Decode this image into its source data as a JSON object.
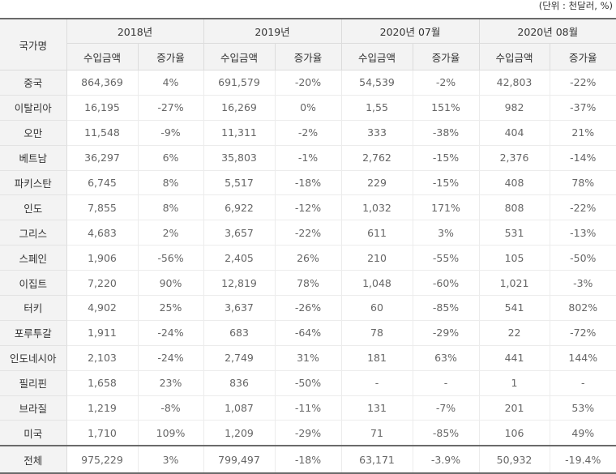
{
  "unit_note": "(단위 : 천달러, %)",
  "headers": {
    "country": "국가명",
    "periods": [
      "2018년",
      "2019년",
      "2020년 07월",
      "2020년 08월"
    ],
    "amount": "수입금액",
    "growth": "증가율"
  },
  "rows": [
    {
      "name": "중국",
      "cells": [
        "864,369",
        "4%",
        "691,579",
        "-20%",
        "54,539",
        "-2%",
        "42,803",
        "-22%"
      ]
    },
    {
      "name": "이탈리아",
      "cells": [
        "16,195",
        "-27%",
        "16,269",
        "0%",
        "1,55",
        "151%",
        "982",
        "-37%"
      ]
    },
    {
      "name": "오만",
      "cells": [
        "11,548",
        "-9%",
        "11,311",
        "-2%",
        "333",
        "-38%",
        "404",
        "21%"
      ]
    },
    {
      "name": "베트남",
      "cells": [
        "36,297",
        "6%",
        "35,803",
        "-1%",
        "2,762",
        "-15%",
        "2,376",
        "-14%"
      ]
    },
    {
      "name": "파키스탄",
      "cells": [
        "6,745",
        "8%",
        "5,517",
        "-18%",
        "229",
        "-15%",
        "408",
        "78%"
      ]
    },
    {
      "name": "인도",
      "cells": [
        "7,855",
        "8%",
        "6,922",
        "-12%",
        "1,032",
        "171%",
        "808",
        "-22%"
      ]
    },
    {
      "name": "그리스",
      "cells": [
        "4,683",
        "2%",
        "3,657",
        "-22%",
        "611",
        "3%",
        "531",
        "-13%"
      ]
    },
    {
      "name": "스페인",
      "cells": [
        "1,906",
        "-56%",
        "2,405",
        "26%",
        "210",
        "-55%",
        "105",
        "-50%"
      ]
    },
    {
      "name": "이집트",
      "cells": [
        "7,220",
        "90%",
        "12,819",
        "78%",
        "1,048",
        "-60%",
        "1,021",
        "-3%"
      ]
    },
    {
      "name": "터키",
      "cells": [
        "4,902",
        "25%",
        "3,637",
        "-26%",
        "60",
        "-85%",
        "541",
        "802%"
      ]
    },
    {
      "name": "포루투갈",
      "cells": [
        "1,911",
        "-24%",
        "683",
        "-64%",
        "78",
        "-29%",
        "22",
        "-72%"
      ]
    },
    {
      "name": "인도네시아",
      "cells": [
        "2,103",
        "-24%",
        "2,749",
        "31%",
        "181",
        "63%",
        "441",
        "144%"
      ]
    },
    {
      "name": "필리핀",
      "cells": [
        "1,658",
        "23%",
        "836",
        "-50%",
        "-",
        "-",
        "1",
        "-"
      ]
    },
    {
      "name": "브라질",
      "cells": [
        "1,219",
        "-8%",
        "1,087",
        "-11%",
        "131",
        "-7%",
        "201",
        "53%"
      ]
    },
    {
      "name": "미국",
      "cells": [
        "1,710",
        "109%",
        "1,209",
        "-29%",
        "71",
        "-85%",
        "106",
        "49%"
      ]
    }
  ],
  "total": {
    "name": "전체",
    "cells": [
      "975,229",
      "3%",
      "799,497",
      "-18%",
      "63,171",
      "-3.9%",
      "50,932",
      "-19.4%"
    ]
  }
}
